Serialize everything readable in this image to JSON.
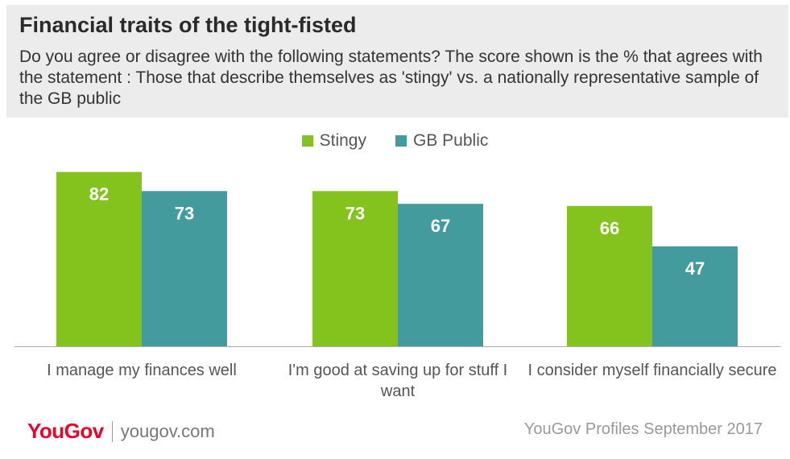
{
  "title": "Financial traits of the tight-fisted",
  "subtitle": "Do you agree or disagree with the following statements? The score shown is the % that agrees with the statement : Those that describe themselves as 'stingy' vs. a nationally representative sample of the GB public",
  "footer": {
    "brand": "YouGov",
    "site": "yougov.com",
    "source": "YouGov Profiles September 2017"
  },
  "colors": {
    "stingy": "#84c31e",
    "gb_public": "#449b9e",
    "header_bg": "#ececec",
    "brand": "#e8002a"
  },
  "chart_data": {
    "type": "bar",
    "categories": [
      "I manage my finances well",
      "I'm good at saving up for stuff I want",
      "I consider myself financially secure"
    ],
    "series": [
      {
        "name": "Stingy",
        "values": [
          82,
          73,
          66
        ]
      },
      {
        "name": "GB Public",
        "values": [
          73,
          67,
          47
        ]
      }
    ],
    "ylim": [
      0,
      100
    ],
    "grid": false,
    "legend": "top-center",
    "data_labels": true
  }
}
